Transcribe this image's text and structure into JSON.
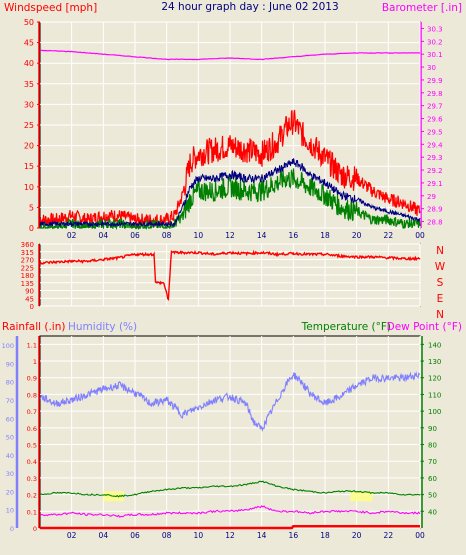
{
  "header": {
    "title": "24 hour graph day : June 02 2013",
    "left_label": "Windspeed [mph]",
    "right_label": "Barometer [.in]"
  },
  "bottom_header": {
    "rainfall_label": "Rainfall (.in)",
    "humidity_label": "Humidity (%)",
    "temperature_label": "Temperature (°F)",
    "dewpoint_label": "Dew Point (°F)"
  },
  "colors": {
    "wind_gust": "#ff0000",
    "wind_avg": "#008000",
    "wind_mid": "#000080",
    "barometer": "#ff00ff",
    "direction": "#ff0000",
    "humidity": "#8080ff",
    "temperature": "#008000",
    "dewpoint": "#ff00ff",
    "rain": "#ff0000",
    "yellow_marks": "#ffff80",
    "grid": "#ffffff",
    "plot_bg": "#ece9d8"
  },
  "chart_data": [
    {
      "type": "line",
      "name": "wind-barometer",
      "x_ticks": [
        "02",
        "04",
        "06",
        "08",
        "10",
        "12",
        "14",
        "16",
        "18",
        "20",
        "22",
        "00"
      ],
      "y_left_ticks": [
        "0",
        "5",
        "10",
        "15",
        "20",
        "25",
        "30",
        "35",
        "40",
        "45",
        "50"
      ],
      "y_left_range": [
        0,
        50
      ],
      "y_right_ticks": [
        "28.8",
        "28.9",
        "29",
        "29.1",
        "29.2",
        "29.3",
        "29.4",
        "29.5",
        "29.6",
        "29.7",
        "29.8",
        "29.9",
        "30",
        "30.1",
        "30.2",
        "30.3"
      ],
      "y_right_range": [
        28.75,
        30.35
      ],
      "x_range": [
        0,
        24
      ],
      "series": [
        {
          "key": "gust",
          "x": [
            0,
            1,
            2,
            3,
            4,
            5,
            6,
            7,
            8,
            8.5,
            9,
            9.5,
            10,
            11,
            12,
            13,
            14,
            15,
            15.5,
            16,
            16.5,
            17,
            18,
            19,
            20,
            21,
            22,
            23,
            24
          ],
          "y": [
            2,
            2,
            3,
            2,
            3,
            3,
            2,
            2,
            2,
            3,
            8,
            16,
            18,
            19,
            20,
            19,
            18,
            21,
            24,
            26,
            23,
            21,
            17,
            13,
            12,
            9,
            7,
            6,
            4
          ]
        },
        {
          "key": "mid",
          "x": [
            0,
            1,
            2,
            3,
            4,
            5,
            6,
            7,
            8,
            8.5,
            9,
            9.5,
            10,
            11,
            12,
            13,
            14,
            15,
            15.5,
            16,
            16.5,
            17,
            18,
            19,
            20,
            21,
            22,
            23,
            24
          ],
          "y": [
            1,
            1,
            1,
            1,
            1,
            1,
            1,
            1,
            1,
            1,
            5,
            10,
            12,
            12,
            13,
            12,
            12,
            14,
            15,
            16,
            15,
            13,
            11,
            8,
            7,
            5,
            4,
            3,
            2
          ]
        },
        {
          "key": "avg",
          "x": [
            0,
            1,
            2,
            3,
            4,
            5,
            6,
            7,
            8,
            8.5,
            9,
            9.5,
            10,
            11,
            12,
            13,
            14,
            15,
            15.5,
            16,
            16.5,
            17,
            18,
            19,
            20,
            21,
            22,
            23,
            24
          ],
          "y": [
            0,
            0,
            1,
            0,
            1,
            1,
            0,
            1,
            0,
            1,
            3,
            7,
            9,
            9,
            10,
            9,
            9,
            11,
            12,
            12,
            11,
            10,
            8,
            5,
            4,
            2,
            2,
            1,
            1
          ]
        },
        {
          "key": "barometer",
          "x": [
            0,
            2,
            4,
            6,
            8,
            10,
            12,
            14,
            16,
            18,
            20,
            22,
            24
          ],
          "y": [
            30.13,
            30.12,
            30.1,
            30.08,
            30.06,
            30.06,
            30.07,
            30.06,
            30.08,
            30.1,
            30.11,
            30.11,
            30.11
          ]
        }
      ]
    },
    {
      "type": "line",
      "name": "wind-direction",
      "x_ticks": [
        "02",
        "04",
        "06",
        "08",
        "10",
        "12",
        "14",
        "16",
        "18",
        "20",
        "22",
        "00"
      ],
      "y_ticks": [
        "0",
        "45",
        "90",
        "135",
        "180",
        "225",
        "270",
        "315",
        "360"
      ],
      "y_range": [
        0,
        360
      ],
      "compass": [
        "N",
        "W",
        "S",
        "E",
        "N"
      ],
      "series": [
        {
          "key": "direction",
          "x": [
            0,
            1,
            2,
            3,
            4,
            5,
            5.5,
            6,
            7,
            7.2,
            7.3,
            7.8,
            8,
            8.1,
            8.3,
            8.5,
            9,
            10,
            11,
            12,
            13,
            14,
            15,
            16,
            17,
            18,
            19,
            20,
            21,
            22,
            23,
            24
          ],
          "y": [
            250,
            255,
            260,
            260,
            270,
            280,
            290,
            300,
            300,
            300,
            135,
            135,
            80,
            20,
            320,
            310,
            310,
            310,
            300,
            310,
            305,
            310,
            300,
            305,
            300,
            300,
            290,
            285,
            285,
            280,
            275,
            275
          ]
        }
      ]
    },
    {
      "type": "line",
      "name": "rain-humidity-temperature",
      "x_ticks": [
        "02",
        "04",
        "06",
        "08",
        "10",
        "12",
        "14",
        "16",
        "18",
        "20",
        "22",
        "00"
      ],
      "rain_ticks": [
        "0",
        "0.1",
        "0.2",
        "0.3",
        "0.4",
        "0.5",
        "0.6",
        "0.7",
        "0.8",
        "0.9",
        "1",
        "1.1"
      ],
      "rain_range": [
        0,
        1.15
      ],
      "humidity_ticks": [
        "0",
        "10",
        "20",
        "30",
        "40",
        "50",
        "60",
        "70",
        "80",
        "90",
        "100"
      ],
      "humidity_range": [
        0,
        105
      ],
      "temp_ticks": [
        "40",
        "50",
        "60",
        "70",
        "80",
        "90",
        "100",
        "110",
        "120",
        "130",
        "140"
      ],
      "temp_range": [
        30,
        145
      ],
      "series": [
        {
          "key": "humidity",
          "x": [
            0,
            1,
            2,
            3,
            4,
            5,
            6,
            7,
            8,
            9,
            10,
            11,
            12,
            13,
            13.5,
            14,
            14.5,
            15,
            15.5,
            16,
            16.5,
            17,
            18,
            19,
            20,
            21,
            22,
            23,
            24
          ],
          "y": [
            72,
            68,
            70,
            73,
            76,
            78,
            74,
            68,
            70,
            62,
            66,
            70,
            72,
            68,
            58,
            54,
            62,
            70,
            78,
            84,
            80,
            74,
            68,
            72,
            78,
            82,
            82,
            82,
            84
          ]
        },
        {
          "key": "temperature",
          "x": [
            0,
            1,
            2,
            3,
            4,
            5,
            6,
            7,
            8,
            9,
            10,
            11,
            12,
            13,
            14,
            15,
            16,
            17,
            18,
            19,
            20,
            21,
            22,
            23,
            24
          ],
          "y": [
            50,
            51,
            51,
            50,
            50,
            49,
            50,
            52,
            53,
            54,
            54,
            55,
            55,
            56,
            58,
            55,
            53,
            52,
            51,
            52,
            52,
            51,
            51,
            50,
            50
          ]
        },
        {
          "key": "dewpoint",
          "x": [
            0,
            1,
            2,
            3,
            4,
            5,
            6,
            7,
            8,
            9,
            10,
            11,
            12,
            13,
            14,
            15,
            16,
            17,
            18,
            19,
            20,
            21,
            22,
            23,
            24
          ],
          "y": [
            38,
            38,
            39,
            38,
            38,
            37,
            38,
            38,
            39,
            39,
            39,
            40,
            40,
            41,
            43,
            40,
            40,
            39,
            40,
            40,
            40,
            39,
            40,
            39,
            39
          ]
        },
        {
          "key": "rain",
          "x": [
            0,
            2,
            4,
            6,
            8,
            10,
            12,
            14,
            15.9,
            16,
            18,
            20,
            22,
            24
          ],
          "y": [
            0,
            0,
            0,
            0,
            0,
            0,
            0,
            0,
            0,
            0.01,
            0.01,
            0.01,
            0.01,
            0.01
          ]
        }
      ]
    }
  ]
}
